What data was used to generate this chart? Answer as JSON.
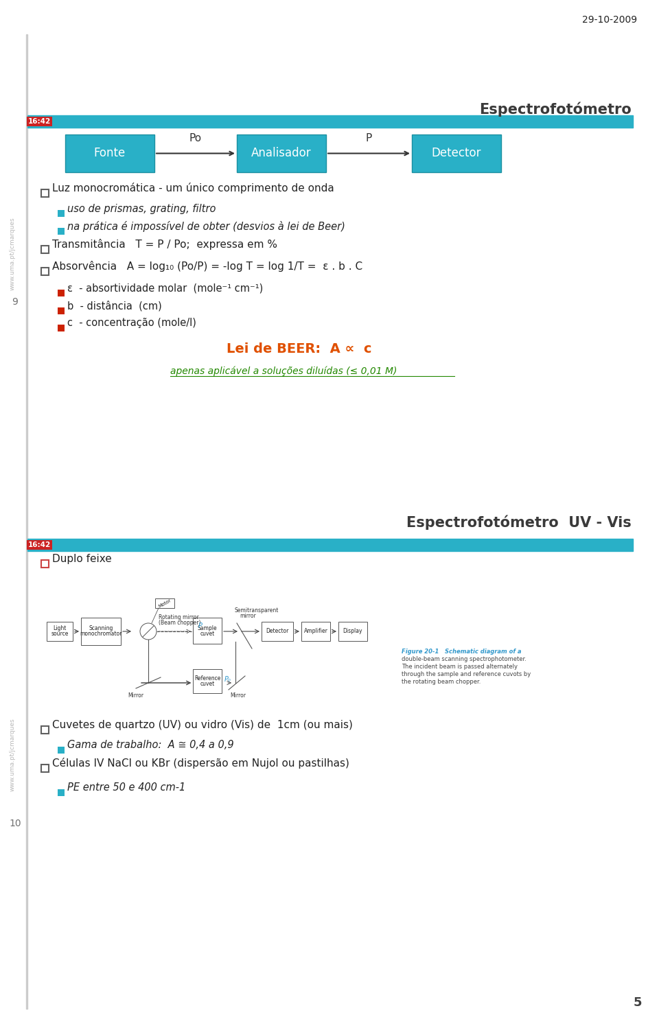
{
  "date_text": "29-10-2009",
  "page_num": "5",
  "slide_num_1": "9",
  "slide_num_2": "10",
  "bg_color": "#ffffff",
  "slide_bar_color": "#29b0c7",
  "slide_bar_label": "16:42",
  "header1": "Espectrofotómetro",
  "header2": "Espectrofotómetro  UV - Vis",
  "header_color": "#3a3a3a",
  "box_color": "#29b0c7",
  "box_text_color": "#ffffff",
  "box_labels": [
    "Fonte",
    "Analisador",
    "Detector"
  ],
  "arrow_label1": "Po",
  "arrow_label2": "P",
  "bullet_square_color_cyan": "#29b0c7",
  "bullet_square_color_red": "#cc2200",
  "text_color_red": "#e05000",
  "text_color_green": "#228800",
  "slide1_content": [
    {
      "type": "bullet1",
      "text": "Luz monocromática - um único comprimento de onda"
    },
    {
      "type": "bullet2",
      "text": "uso de prismas, grating, filtro"
    },
    {
      "type": "bullet2",
      "text": "na prática é impossível de obter (desvios à lei de Beer)"
    },
    {
      "type": "bullet1",
      "text": "Transmitância   T = P / Po;  expressa em %"
    },
    {
      "type": "bullet1",
      "text": "Absorvência   A = log₁₀ (Po/P) = -log T = log 1/T =  ε . b . C"
    },
    {
      "type": "bullet3",
      "text": "ε  - absortividade molar  (mole⁻¹ cm⁻¹)"
    },
    {
      "type": "bullet3",
      "text": "b  - distância  (cm)"
    },
    {
      "type": "bullet3",
      "text": "c  - concentração (mole/l)"
    }
  ],
  "beer_law_text": "Lei de BEER:  A ∝  c",
  "beer_law_sub": "apenas aplicável a soluções diluídas (≤ 0,01 M)",
  "slide2_content_before": [
    {
      "type": "bullet1",
      "text": "Duplo feixe"
    }
  ],
  "slide2_content_after": [
    {
      "type": "bullet1",
      "text": "Cuvetes de quartzo (UV) ou vidro (Vis) de  1cm (ou mais)"
    },
    {
      "type": "bullet2",
      "text": "Gama de trabalho:  A ≅ 0,4 a 0,9"
    },
    {
      "type": "bullet1",
      "text": "Células IV NaCl ou KBr (dispersão em Nujol ou pastilhas)"
    },
    {
      "type": "bullet2",
      "text": "PE entre 50 e 400 cm-1"
    }
  ],
  "fig_caption": [
    "Figure 20-1   Schematic diagram of a",
    "double-beam scanning spectrophotometer.",
    "The incident beam is passed alternately",
    "through the sample and reference cuvots by",
    "the rotating beam chopper."
  ]
}
